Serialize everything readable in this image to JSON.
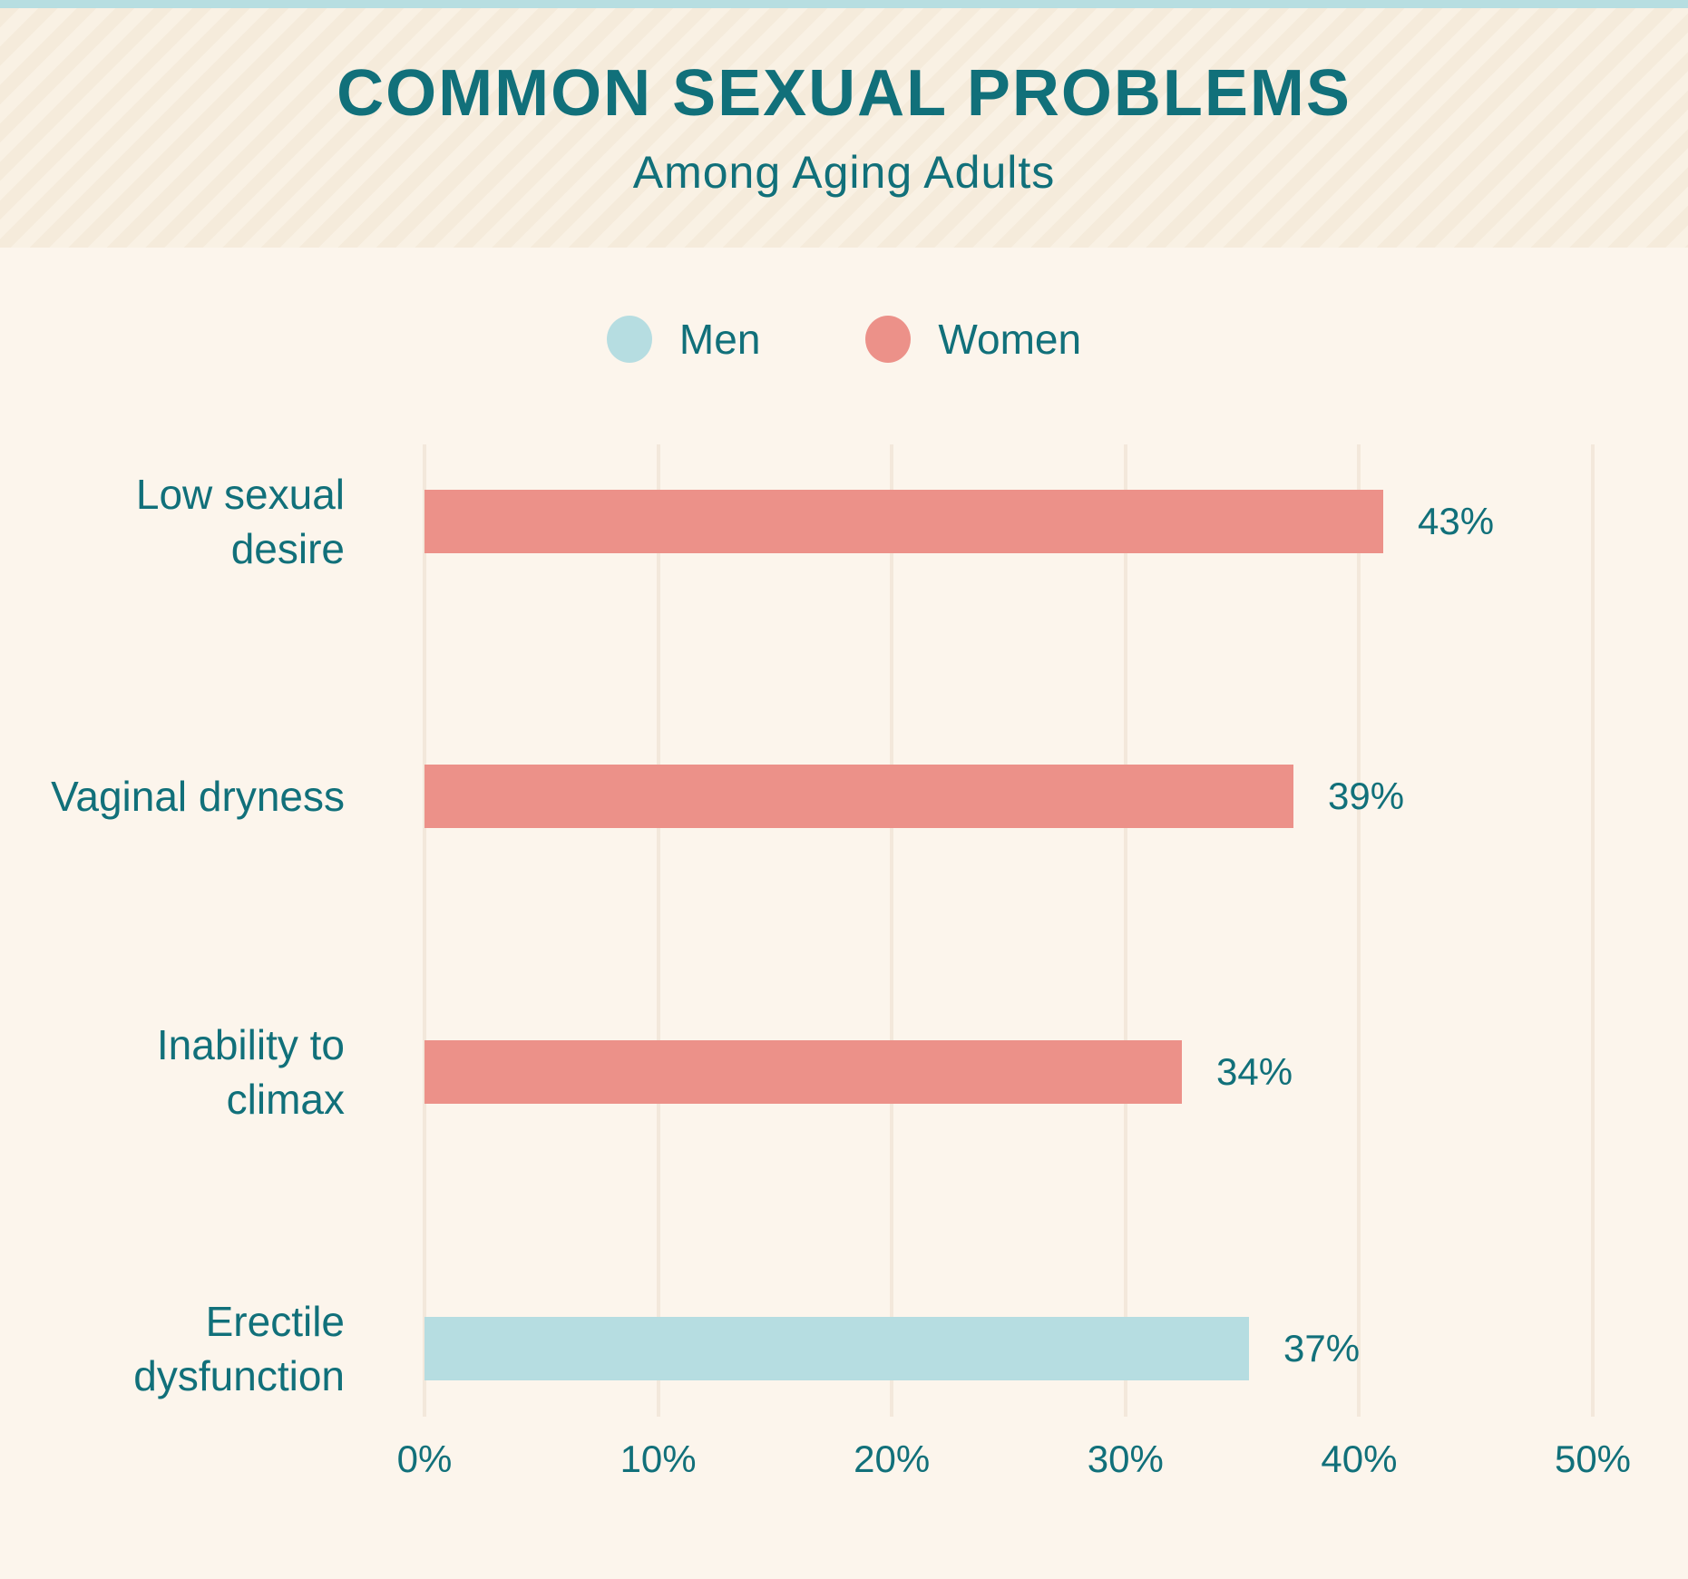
{
  "header": {
    "title": "COMMON SEXUAL PROBLEMS",
    "subtitle": "Among Aging Adults"
  },
  "legend": {
    "items": [
      {
        "label": "Men",
        "color": "#b6dde1"
      },
      {
        "label": "Women",
        "color": "#ec9189"
      }
    ]
  },
  "chart_data": {
    "type": "bar",
    "orientation": "horizontal",
    "title": "COMMON SEXUAL PROBLEMS",
    "subtitle": "Among Aging Adults",
    "categories": [
      "Low sexual desire",
      "Vaginal dryness",
      "Inability to climax",
      "Erectile dysfunction"
    ],
    "series_by_category": [
      "Women",
      "Women",
      "Women",
      "Men"
    ],
    "values": [
      43,
      39,
      34,
      37
    ],
    "value_labels": [
      "43%",
      "39%",
      "34%",
      "37%"
    ],
    "x_ticks": [
      "0%",
      "10%",
      "20%",
      "30%",
      "40%",
      "50%"
    ],
    "xlim": [
      0,
      50
    ],
    "grid": "vertical-gridlines-only",
    "legend_position": "top-center",
    "colors": {
      "Men": "#b6dde1",
      "Women": "#ec9189",
      "text": "#11707a",
      "gridline": "#f3e8db",
      "background": "#fcf5ec",
      "top_accent": "#b7dee1"
    }
  }
}
